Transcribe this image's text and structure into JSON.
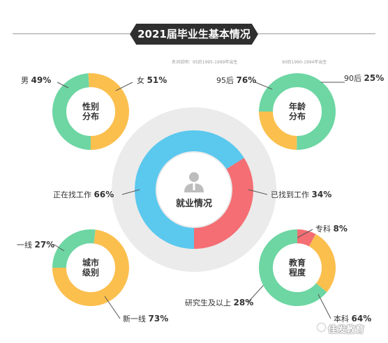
{
  "title": "2021届毕业生基本情况",
  "notes": {
    "left": "名词说明：95后1995-1999年出生",
    "right": "90后1990-1994年出生"
  },
  "watermark": "佳发教育",
  "colors": {
    "green": "#6DD6A3",
    "yellow": "#FBBF4E",
    "blue": "#5BC8EE",
    "red": "#F46E73",
    "halo": "#EBEBEB"
  },
  "chart_data": [
    {
      "type": "pie",
      "id": "gender",
      "title": "性别分布",
      "slices": [
        {
          "label": "男",
          "pct_text": "49%",
          "value": 49,
          "color": "#6DD6A3"
        },
        {
          "label": "女",
          "pct_text": "51%",
          "value": 51,
          "color": "#FBBF4E"
        }
      ]
    },
    {
      "type": "pie",
      "id": "age",
      "title": "年龄分布",
      "slices": [
        {
          "label": "95后",
          "pct_text": "76%",
          "value": 76,
          "color": "#6DD6A3"
        },
        {
          "label": "90后",
          "pct_text": "25%",
          "value": 25,
          "color": "#FBBF4E"
        }
      ]
    },
    {
      "type": "pie",
      "id": "employment",
      "title": "就业情况",
      "slices": [
        {
          "label": "正在找工作",
          "pct_text": "66%",
          "value": 66,
          "color": "#5BC8EE"
        },
        {
          "label": "已找到工作",
          "pct_text": "34%",
          "value": 34,
          "color": "#F46E73"
        }
      ]
    },
    {
      "type": "pie",
      "id": "city",
      "title": "城市级别",
      "slices": [
        {
          "label": "一线",
          "pct_text": "27%",
          "value": 27,
          "color": "#6DD6A3"
        },
        {
          "label": "新一线",
          "pct_text": "73%",
          "value": 73,
          "color": "#FBBF4E"
        }
      ]
    },
    {
      "type": "pie",
      "id": "education",
      "title": "教育程度",
      "slices": [
        {
          "label": "专科",
          "pct_text": "8%",
          "value": 8,
          "color": "#F46E73"
        },
        {
          "label": "研究生及以上",
          "pct_text": "28%",
          "value": 28,
          "color": "#FBBF4E"
        },
        {
          "label": "本科",
          "pct_text": "64%",
          "value": 64,
          "color": "#6DD6A3"
        }
      ]
    }
  ]
}
